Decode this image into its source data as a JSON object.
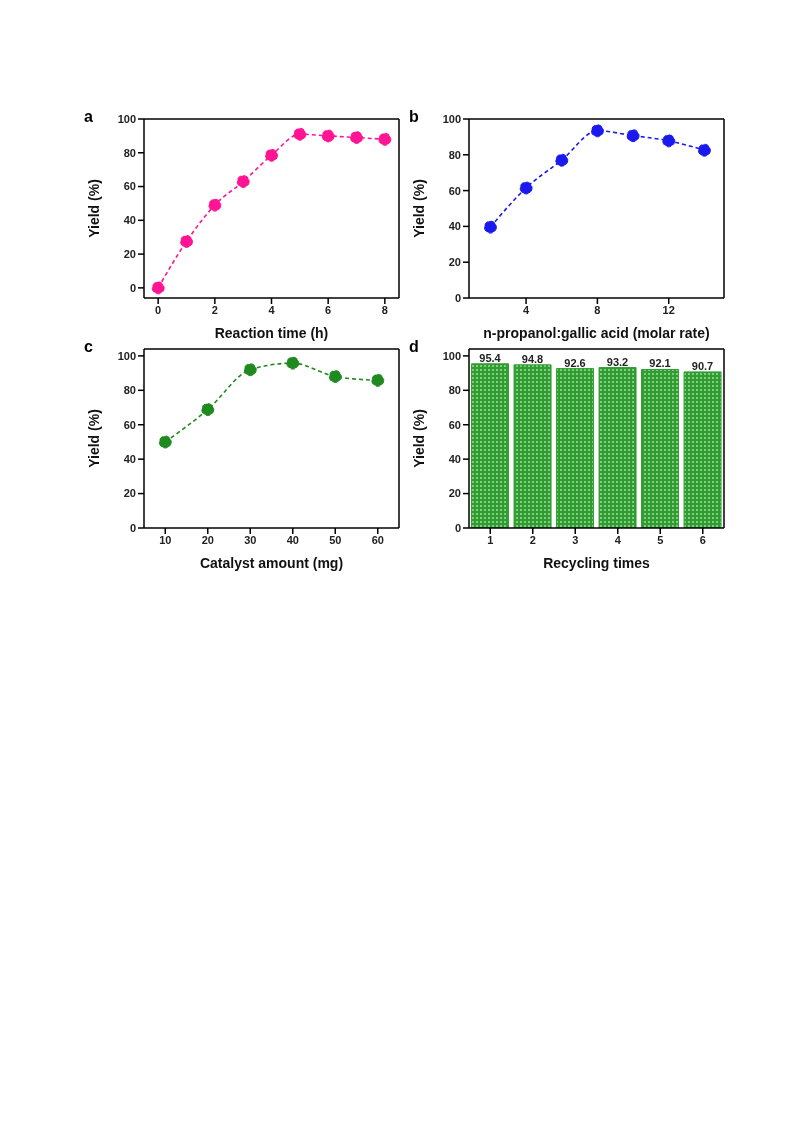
{
  "chart_data": [
    {
      "type": "line",
      "title": "a",
      "xlabel": "Reaction time (h)",
      "ylabel": "Yield (%)",
      "x": [
        0,
        1,
        2,
        3,
        4,
        5,
        6,
        7,
        8
      ],
      "marker": "circle",
      "line_style": "dashed",
      "series": [
        {
          "color": "#ff1493",
          "values": [
            0,
            27.5,
            49,
            63,
            78.5,
            91,
            90,
            89,
            88
          ]
        }
      ],
      "xlim": [
        -0.5,
        8.5
      ],
      "xticks": [
        0,
        2,
        4,
        6,
        8
      ],
      "ylim": [
        -6,
        100
      ],
      "yticks": [
        0,
        20,
        40,
        60,
        80,
        100
      ]
    },
    {
      "type": "line",
      "title": "b",
      "xlabel": "n-propanol:gallic acid (molar rate)",
      "ylabel": "Yield (%)",
      "x": [
        2,
        4,
        6,
        8,
        10,
        12,
        14
      ],
      "marker": "circle",
      "line_style": "dashed",
      "series": [
        {
          "color": "#1a1aee",
          "values": [
            39.6,
            61.5,
            77,
            93.4,
            90.7,
            87.8,
            82.6
          ]
        }
      ],
      "xlim": [
        0.8,
        15.1
      ],
      "xticks": [
        4,
        8,
        12
      ],
      "ylim": [
        0,
        100
      ],
      "yticks": [
        0,
        20,
        40,
        60,
        80,
        100
      ]
    },
    {
      "type": "line",
      "title": "c",
      "xlabel": "Catalyst amount (mg)",
      "ylabel": "Yield (%)",
      "x": [
        10,
        20,
        30,
        40,
        50,
        60
      ],
      "marker": "circle",
      "line_style": "dashed",
      "series": [
        {
          "color": "#1f8a1f",
          "values": [
            50,
            68.8,
            92,
            95.8,
            88,
            85.8
          ]
        }
      ],
      "xlim": [
        5,
        65
      ],
      "xticks": [
        10,
        20,
        30,
        40,
        50,
        60
      ],
      "ylim": [
        0,
        104
      ],
      "yticks": [
        0,
        20,
        40,
        60,
        80,
        100
      ]
    },
    {
      "type": "bar",
      "title": "d",
      "xlabel": "Recycling times",
      "ylabel": "Yield (%)",
      "categories": [
        "1",
        "2",
        "3",
        "4",
        "5",
        "6"
      ],
      "data_labels": true,
      "series": [
        {
          "color": "#2e9e2e",
          "values": [
            95.4,
            94.8,
            92.6,
            93.2,
            92.1,
            90.7
          ]
        }
      ],
      "ylim": [
        0,
        104
      ],
      "yticks": [
        0,
        20,
        40,
        60,
        80,
        100
      ]
    }
  ]
}
